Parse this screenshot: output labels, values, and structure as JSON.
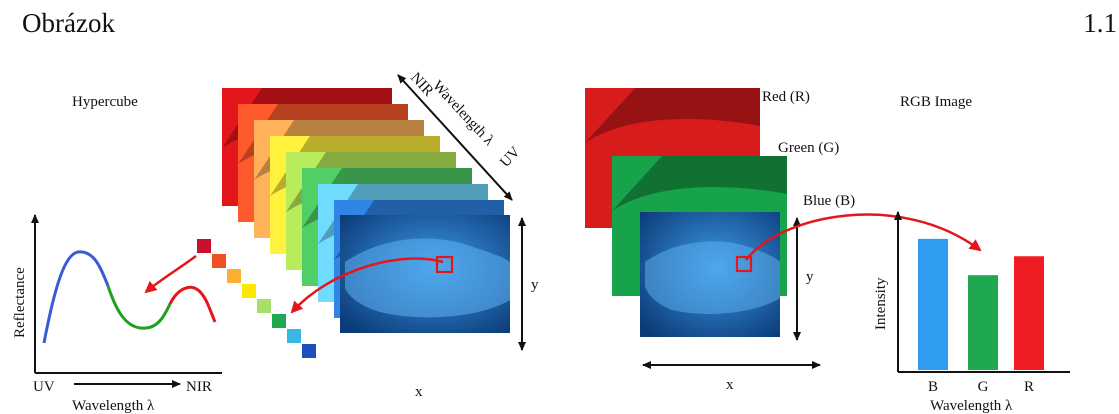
{
  "header": {
    "left": "Obrázok",
    "right": "1.1"
  },
  "hypercube": {
    "title": "Hypercube",
    "axis_wavelength": "Wavelength λ",
    "axis_nir": "NIR",
    "axis_uv": "UV",
    "axis_y": "y",
    "axis_x": "x",
    "layer_colors": [
      "#e3161c",
      "#ff5a2b",
      "#ffb25a",
      "#fff23d",
      "#b9ec5a",
      "#4fcf66",
      "#6fdcff",
      "#2f86e6"
    ],
    "pixel_colors": [
      "#c8102e",
      "#f04e23",
      "#fbb034",
      "#ffe600",
      "#a5e06a",
      "#1fa84f",
      "#37b7e2",
      "#1f4fbf"
    ]
  },
  "spectrum_plot": {
    "ylabel": "Reflectance",
    "x_start": "UV",
    "x_end": "NIR",
    "xlabel": "Wavelength λ",
    "segment_colors": [
      "#3a5bd6",
      "#1fa01f",
      "#e3161c"
    ]
  },
  "rgb_image": {
    "title": "RGB Image",
    "red_label": "Red (R)",
    "green_label": "Green (G)",
    "blue_label": "Blue (B)",
    "axis_y": "y",
    "axis_x": "x",
    "layer_colors": [
      "#d81c1c",
      "#17a34a",
      "#2a6fc8"
    ]
  },
  "intensity_chart": {
    "ylabel": "Intensity",
    "xlabel": "Wavelength λ",
    "bars": [
      {
        "label": "B",
        "value": 0.83,
        "color": "#2f9cf0"
      },
      {
        "label": "G",
        "value": 0.6,
        "color": "#1fa84f"
      },
      {
        "label": "R",
        "value": 0.72,
        "color": "#ef1c24"
      }
    ]
  }
}
